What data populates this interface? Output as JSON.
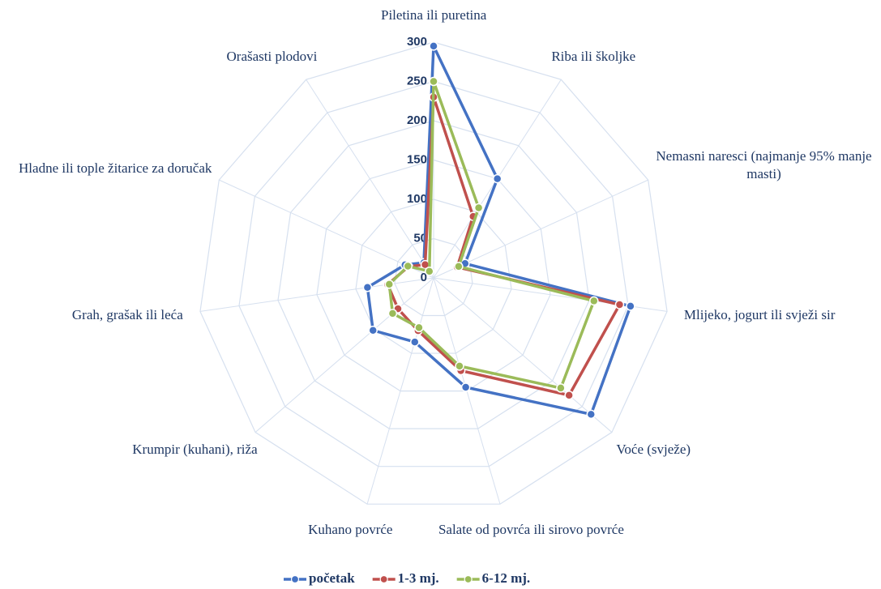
{
  "chart_data": {
    "type": "radar",
    "categories": [
      "Piletina ili puretina",
      "Riba ili školjke",
      "Nemasni naresci (najmanje 95% manje masti)",
      "Mlijeko, jogurt ili svježi sir",
      "Voće (svježe)",
      "Salate od povrća ili sirovo povrće",
      "Kuhano povrće",
      "Krumpir (kuhani), riža",
      "Grah, grašak ili leća",
      "Hladne ili tople žitarice za doručak",
      "Orašasti plodovi"
    ],
    "series": [
      {
        "name": "početak",
        "color": "#4472c4",
        "values": [
          295,
          150,
          44,
          253,
          265,
          145,
          85,
          102,
          85,
          40,
          23
        ]
      },
      {
        "name": "1-3 mj.",
        "color": "#c0504d",
        "values": [
          230,
          93,
          33,
          239,
          228,
          123,
          70,
          60,
          59,
          35,
          20
        ]
      },
      {
        "name": "6-12 mj.",
        "color": "#9bbb59",
        "values": [
          250,
          106,
          35,
          206,
          214,
          117,
          66,
          69,
          57,
          36,
          10
        ]
      }
    ],
    "ylim": [
      0,
      300
    ],
    "yticks": [
      0,
      50,
      100,
      150,
      200,
      250,
      300
    ],
    "grid": true,
    "legend": "bottom"
  }
}
